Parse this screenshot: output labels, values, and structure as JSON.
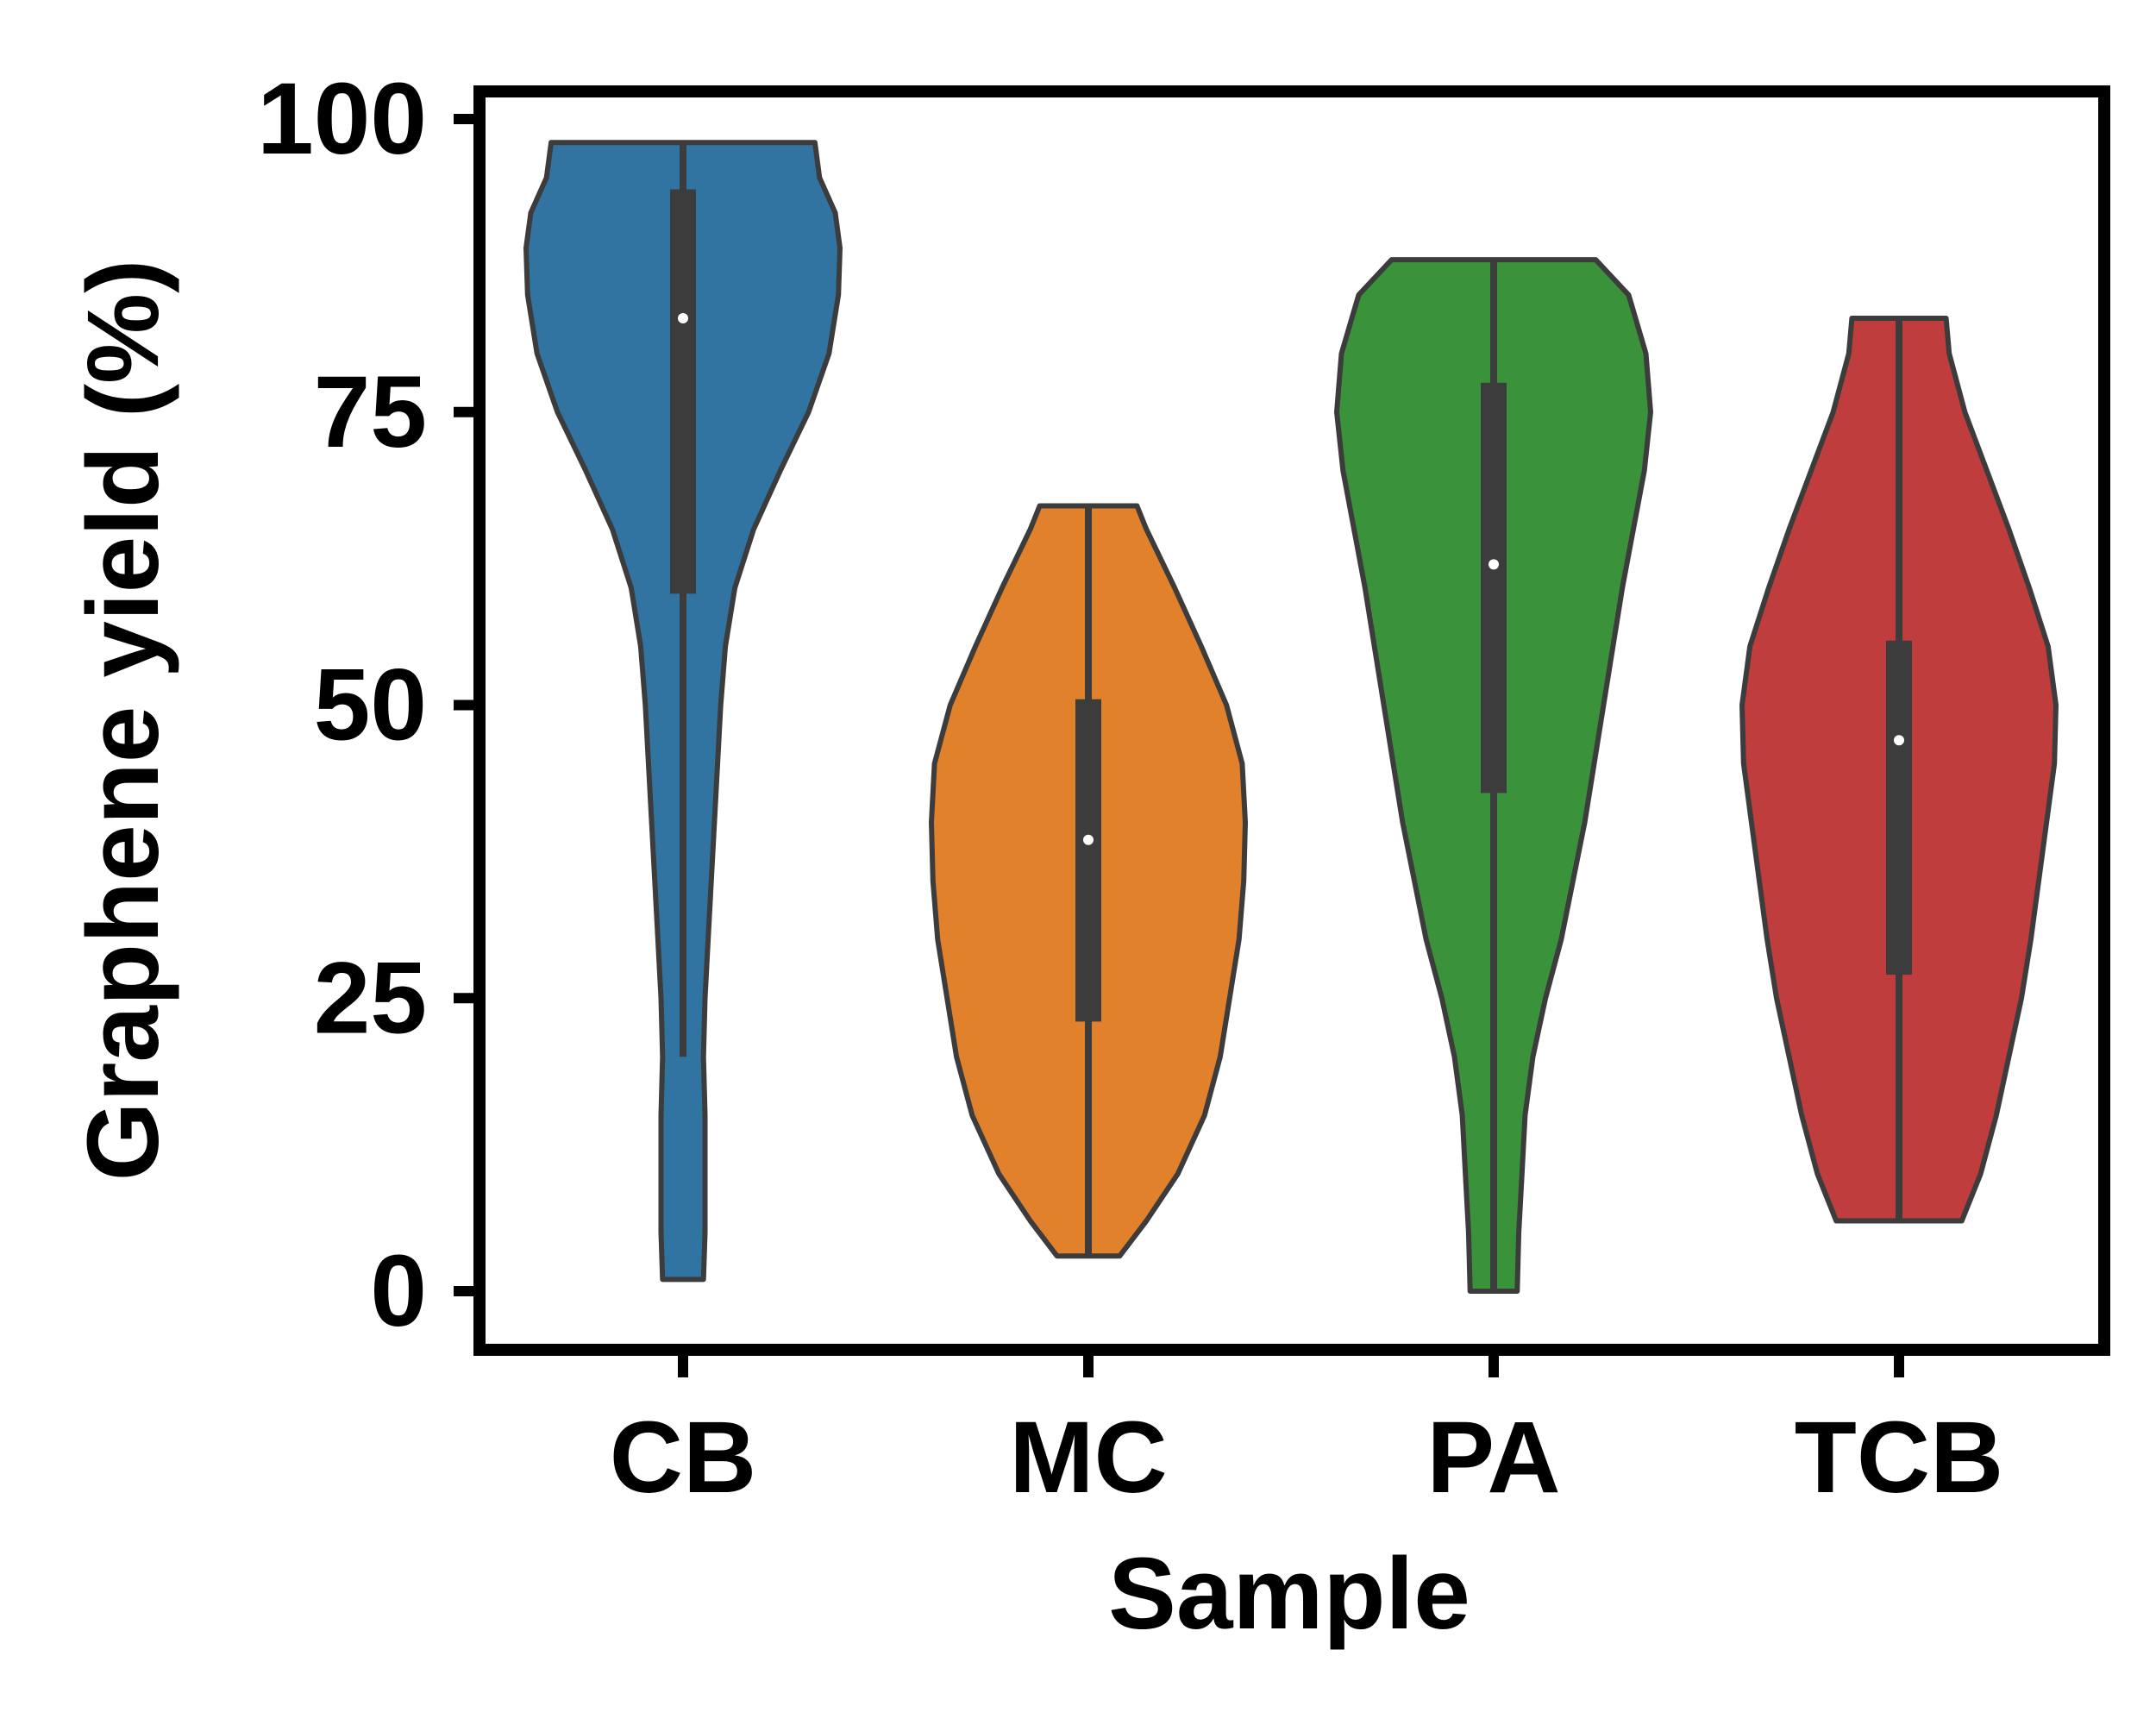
{
  "chart_data": {
    "type": "violin",
    "xlabel": "Sample",
    "ylabel": "Graphene yield (%)",
    "ylim": [
      -5,
      102
    ],
    "yticks": [
      "0",
      "25",
      "50",
      "75",
      "100"
    ],
    "ytick_values": [
      0,
      25,
      50,
      75,
      100
    ],
    "grid": false,
    "edge_color": "#3c3c3c",
    "box_color": "#3c3c3c",
    "median_color": "#ffffff",
    "categories": [
      "CB",
      "MC",
      "PA",
      "TCB"
    ],
    "series": [
      {
        "category": "CB",
        "color": "#3274a1",
        "min": 1,
        "q1": 59.5,
        "median": 83,
        "q3": 94,
        "max": 98,
        "whisker_low": 20,
        "whisker_high": 98,
        "density": [
          [
            1,
            0.13
          ],
          [
            5,
            0.14
          ],
          [
            10,
            0.14
          ],
          [
            15,
            0.14
          ],
          [
            20,
            0.13
          ],
          [
            25,
            0.14
          ],
          [
            30,
            0.16
          ],
          [
            40,
            0.2
          ],
          [
            50,
            0.24
          ],
          [
            55,
            0.27
          ],
          [
            60,
            0.33
          ],
          [
            65,
            0.45
          ],
          [
            70,
            0.62
          ],
          [
            75,
            0.8
          ],
          [
            80,
            0.93
          ],
          [
            85,
            0.99
          ],
          [
            89,
            1.0
          ],
          [
            92,
            0.97
          ],
          [
            95,
            0.87
          ],
          [
            98,
            0.84
          ]
        ]
      },
      {
        "category": "MC",
        "color": "#e1812c",
        "min": 3,
        "q1": 23,
        "median": 38.5,
        "q3": 50.5,
        "max": 67,
        "whisker_low": 3,
        "whisker_high": 67,
        "density": [
          [
            3,
            0.2
          ],
          [
            6,
            0.37
          ],
          [
            10,
            0.57
          ],
          [
            15,
            0.74
          ],
          [
            20,
            0.84
          ],
          [
            25,
            0.9
          ],
          [
            30,
            0.96
          ],
          [
            35,
            0.99
          ],
          [
            40,
            1.0
          ],
          [
            45,
            0.98
          ],
          [
            50,
            0.88
          ],
          [
            55,
            0.72
          ],
          [
            60,
            0.55
          ],
          [
            65,
            0.37
          ],
          [
            67,
            0.31
          ]
        ]
      },
      {
        "category": "PA",
        "color": "#3a923a",
        "min": 0,
        "q1": 42.5,
        "median": 62,
        "q3": 77.5,
        "max": 88,
        "whisker_low": 0,
        "whisker_high": 88,
        "density": [
          [
            0,
            0.15
          ],
          [
            5,
            0.16
          ],
          [
            10,
            0.18
          ],
          [
            15,
            0.2
          ],
          [
            20,
            0.25
          ],
          [
            25,
            0.33
          ],
          [
            30,
            0.43
          ],
          [
            40,
            0.58
          ],
          [
            50,
            0.7
          ],
          [
            60,
            0.82
          ],
          [
            70,
            0.96
          ],
          [
            75,
            1.0
          ],
          [
            80,
            0.97
          ],
          [
            85,
            0.86
          ],
          [
            88,
            0.65
          ]
        ]
      },
      {
        "category": "TCB",
        "color": "#c03d3e",
        "min": 6,
        "q1": 27,
        "median": 47,
        "q3": 55.5,
        "max": 83,
        "whisker_low": 6,
        "whisker_high": 83,
        "density": [
          [
            6,
            0.4
          ],
          [
            10,
            0.52
          ],
          [
            15,
            0.62
          ],
          [
            20,
            0.7
          ],
          [
            25,
            0.78
          ],
          [
            30,
            0.84
          ],
          [
            35,
            0.89
          ],
          [
            40,
            0.94
          ],
          [
            45,
            0.99
          ],
          [
            50,
            1.0
          ],
          [
            55,
            0.95
          ],
          [
            60,
            0.83
          ],
          [
            65,
            0.7
          ],
          [
            70,
            0.56
          ],
          [
            75,
            0.42
          ],
          [
            80,
            0.32
          ],
          [
            83,
            0.3
          ]
        ]
      }
    ]
  }
}
